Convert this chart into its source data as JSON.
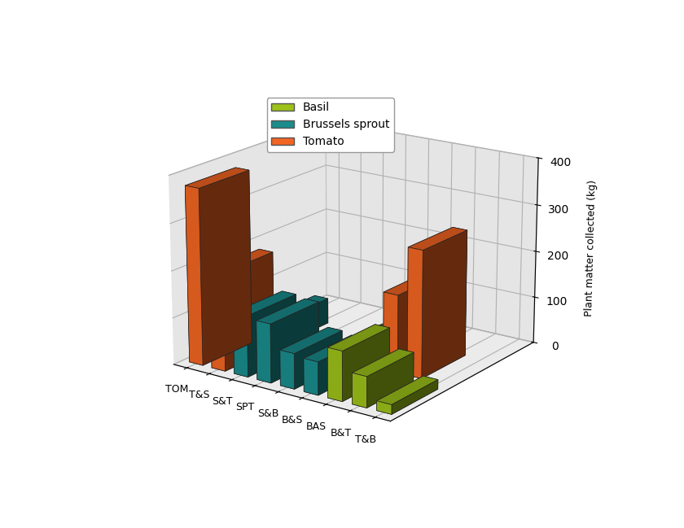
{
  "categories": [
    "TOM",
    "T&S",
    "S&T",
    "SPT",
    "S&B",
    "B&S",
    "BAS",
    "B&T",
    "T&B"
  ],
  "basil": [
    0,
    0,
    0,
    0,
    25,
    60,
    105,
    65,
    20
  ],
  "brussels": [
    0,
    55,
    130,
    125,
    75,
    70,
    0,
    0,
    0
  ],
  "tomato": [
    375,
    210,
    0,
    0,
    0,
    0,
    165,
    270,
    0
  ],
  "colors": {
    "basil": "#9dc219",
    "brussels": "#1a8c8c",
    "tomato": "#f26522"
  },
  "ylabel": "Plant matter collected (kg)",
  "ylim": [
    0,
    400
  ],
  "yticks": [
    0,
    100,
    200,
    300,
    400
  ],
  "legend_labels": [
    "Basil",
    "Brussels sprout",
    "Tomato"
  ],
  "elev": 18,
  "azim": -55
}
